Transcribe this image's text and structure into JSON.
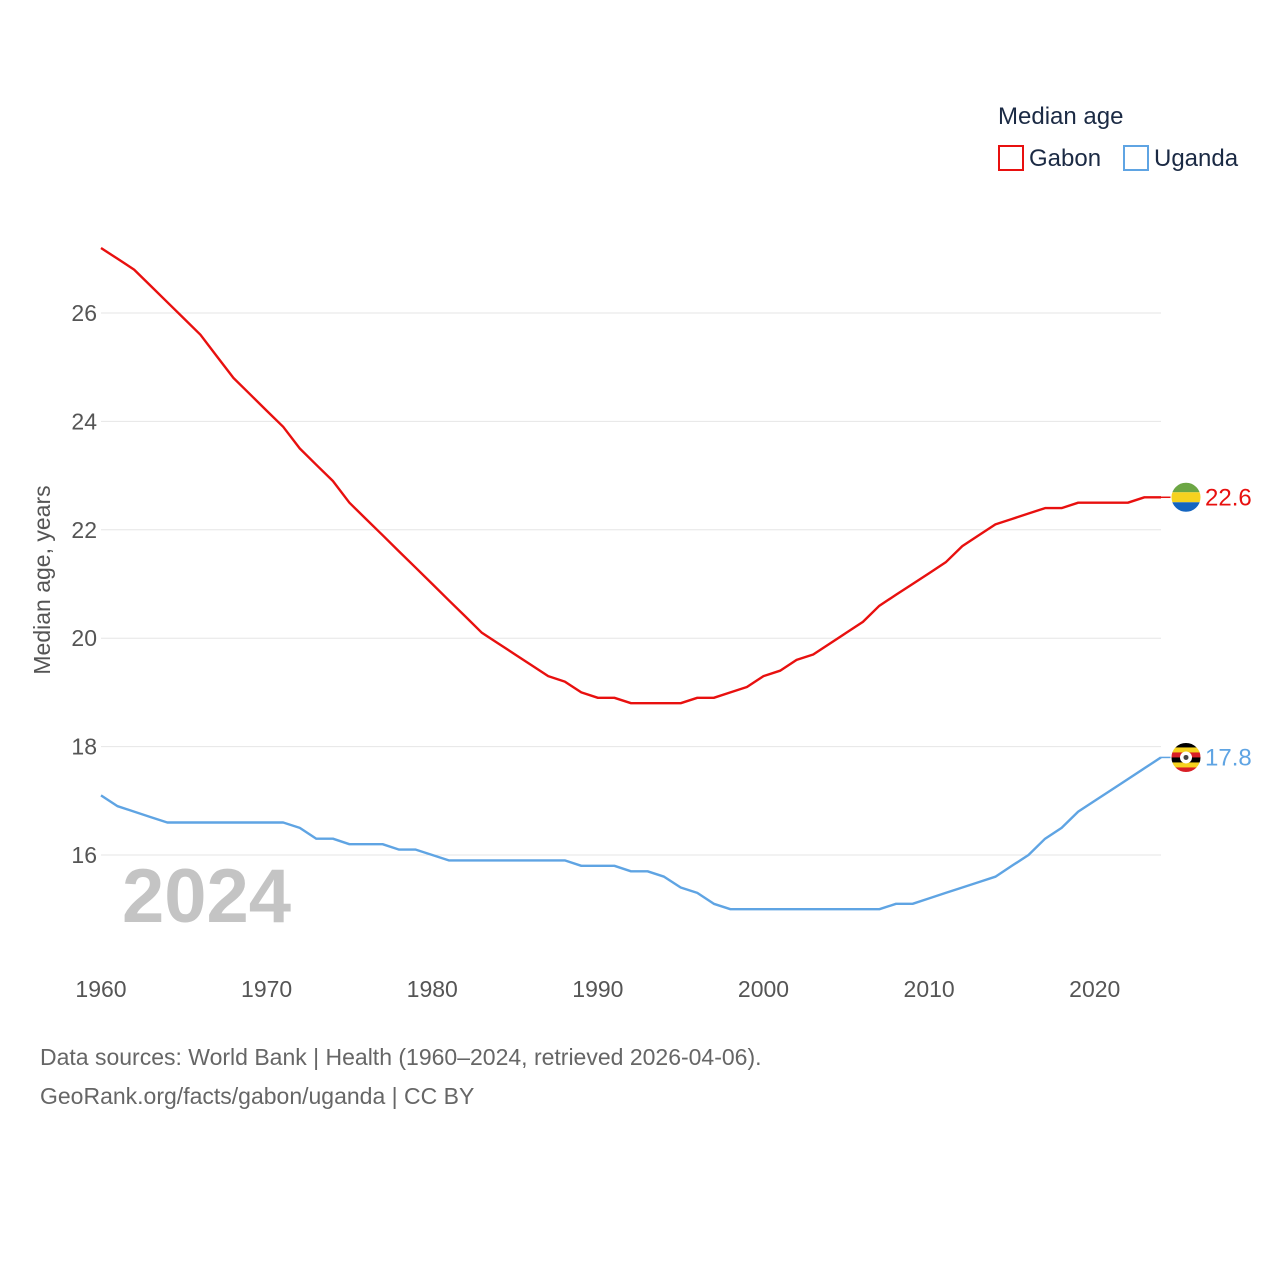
{
  "legend": {
    "title": "Median age",
    "items": [
      {
        "name": "Gabon",
        "color": "#e8100f"
      },
      {
        "name": "Uganda",
        "color": "#5fa4e3"
      }
    ]
  },
  "year_label": "2024",
  "footer": {
    "line1": "Data sources: World Bank | Health (1960–2024, retrieved 2026-04-06).",
    "line2": "GeoRank.org/facts/gabon/uganda | CC BY"
  },
  "chart_data": {
    "type": "line",
    "title": "Median age",
    "xlabel": "",
    "ylabel": "Median age, years",
    "xlim": [
      1960,
      2024
    ],
    "ylim": [
      14.5,
      27.5
    ],
    "xticks": [
      1960,
      1970,
      1980,
      1990,
      2000,
      2010,
      2020
    ],
    "yticks": [
      16,
      18,
      20,
      22,
      24,
      26
    ],
    "grid": true,
    "legend_position": "top-right",
    "x": [
      1960,
      1961,
      1962,
      1963,
      1964,
      1965,
      1966,
      1967,
      1968,
      1969,
      1970,
      1971,
      1972,
      1973,
      1974,
      1975,
      1976,
      1977,
      1978,
      1979,
      1980,
      1981,
      1982,
      1983,
      1984,
      1985,
      1986,
      1987,
      1988,
      1989,
      1990,
      1991,
      1992,
      1993,
      1994,
      1995,
      1996,
      1997,
      1998,
      1999,
      2000,
      2001,
      2002,
      2003,
      2004,
      2005,
      2006,
      2007,
      2008,
      2009,
      2010,
      2011,
      2012,
      2013,
      2014,
      2015,
      2016,
      2017,
      2018,
      2019,
      2020,
      2021,
      2022,
      2023,
      2024
    ],
    "series": [
      {
        "name": "Gabon",
        "color": "#e8100f",
        "end_label": "22.6",
        "flag": "gabon-flag",
        "values": [
          27.2,
          27.0,
          26.8,
          26.5,
          26.2,
          25.9,
          25.6,
          25.2,
          24.8,
          24.5,
          24.2,
          23.9,
          23.5,
          23.2,
          22.9,
          22.5,
          22.2,
          21.9,
          21.6,
          21.3,
          21.0,
          20.7,
          20.4,
          20.1,
          19.9,
          19.7,
          19.5,
          19.3,
          19.2,
          19.0,
          18.9,
          18.9,
          18.8,
          18.8,
          18.8,
          18.8,
          18.9,
          18.9,
          19.0,
          19.1,
          19.3,
          19.4,
          19.6,
          19.7,
          19.9,
          20.1,
          20.3,
          20.6,
          20.8,
          21.0,
          21.2,
          21.4,
          21.7,
          21.9,
          22.1,
          22.2,
          22.3,
          22.4,
          22.4,
          22.5,
          22.5,
          22.5,
          22.5,
          22.6,
          22.6
        ]
      },
      {
        "name": "Uganda",
        "color": "#5fa4e3",
        "end_label": "17.8",
        "flag": "uganda-flag",
        "values": [
          17.1,
          16.9,
          16.8,
          16.7,
          16.6,
          16.6,
          16.6,
          16.6,
          16.6,
          16.6,
          16.6,
          16.6,
          16.5,
          16.3,
          16.3,
          16.2,
          16.2,
          16.2,
          16.1,
          16.1,
          16.0,
          15.9,
          15.9,
          15.9,
          15.9,
          15.9,
          15.9,
          15.9,
          15.9,
          15.8,
          15.8,
          15.8,
          15.7,
          15.7,
          15.6,
          15.4,
          15.3,
          15.1,
          15.0,
          15.0,
          15.0,
          15.0,
          15.0,
          15.0,
          15.0,
          15.0,
          15.0,
          15.0,
          15.1,
          15.1,
          15.2,
          15.3,
          15.4,
          15.5,
          15.6,
          15.8,
          16.0,
          16.3,
          16.5,
          16.8,
          17.0,
          17.2,
          17.4,
          17.6,
          17.8
        ]
      }
    ]
  }
}
